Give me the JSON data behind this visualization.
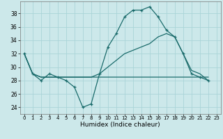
{
  "xlabel": "Humidex (Indice chaleur)",
  "bg_color": "#cce8ea",
  "grid_color": "#aad4d8",
  "line_color": "#1a6b6b",
  "xlim": [
    -0.5,
    23.5
  ],
  "ylim": [
    23.0,
    39.8
  ],
  "yticks": [
    24,
    26,
    28,
    30,
    32,
    34,
    36,
    38
  ],
  "xticks": [
    0,
    1,
    2,
    3,
    4,
    5,
    6,
    7,
    8,
    9,
    10,
    11,
    12,
    13,
    14,
    15,
    16,
    17,
    18,
    19,
    20,
    21,
    22,
    23
  ],
  "series_main": [
    32,
    29,
    28,
    29,
    28.5,
    28,
    27,
    24,
    24.5,
    29,
    33,
    35,
    37.5,
    38.5,
    38.5,
    39.0,
    37.5,
    35.5,
    34.5,
    32,
    29,
    28.5,
    28
  ],
  "series_flat": [
    32,
    29,
    28.5,
    28.5,
    28.5,
    28.5,
    28.5,
    28.5,
    28.5,
    28.5,
    28.5,
    28.5,
    28.5,
    28.5,
    28.5,
    28.5,
    28.5,
    28.5,
    28.5,
    28.5,
    28.5,
    28.5,
    28.5
  ],
  "series_diag": [
    32,
    29,
    28.5,
    28.5,
    28.5,
    28.5,
    28.5,
    28.5,
    28.5,
    29.0,
    30.0,
    31.0,
    32.0,
    32.5,
    33.0,
    33.5,
    34.5,
    35.0,
    34.5,
    32,
    29.5,
    29,
    28
  ]
}
